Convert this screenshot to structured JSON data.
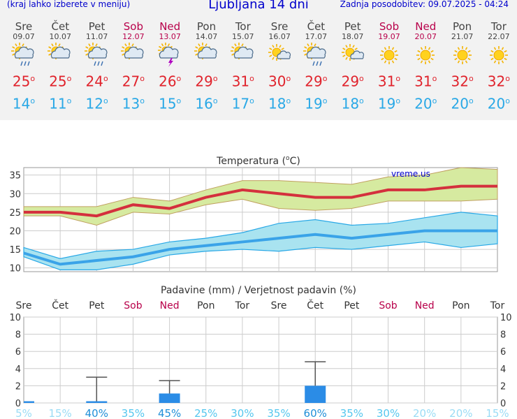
{
  "header": {
    "left_note": "(kraj lahko izberete v meniju)",
    "title": "Ljubljana 14 dni",
    "updated": "Zadnja posodobitev: 09.07.2025 - 04:24"
  },
  "days": [
    {
      "name": "Sre",
      "date": "09.07",
      "weekend": false,
      "icon": "sun-cloud-rain-icon",
      "tmax": "25",
      "tmin": "14"
    },
    {
      "name": "Čet",
      "date": "10.07",
      "weekend": false,
      "icon": "sun-cloud-icon",
      "tmax": "25",
      "tmin": "11"
    },
    {
      "name": "Pet",
      "date": "11.07",
      "weekend": false,
      "icon": "sun-cloud-rain-icon",
      "tmax": "24",
      "tmin": "12"
    },
    {
      "name": "Sob",
      "date": "12.07",
      "weekend": true,
      "icon": "sun-cloud-icon",
      "tmax": "27",
      "tmin": "13"
    },
    {
      "name": "Ned",
      "date": "13.07",
      "weekend": true,
      "icon": "cloud-thunder-icon",
      "tmax": "26",
      "tmin": "15"
    },
    {
      "name": "Pon",
      "date": "14.07",
      "weekend": false,
      "icon": "sun-cloud-icon",
      "tmax": "29",
      "tmin": "16"
    },
    {
      "name": "Tor",
      "date": "15.07",
      "weekend": false,
      "icon": "sun-cloud-icon",
      "tmax": "31",
      "tmin": "17"
    },
    {
      "name": "Sre",
      "date": "16.07",
      "weekend": false,
      "icon": "sun-small-cloud-icon",
      "tmax": "30",
      "tmin": "18"
    },
    {
      "name": "Čet",
      "date": "17.07",
      "weekend": false,
      "icon": "sun-cloud-rain-icon",
      "tmax": "29",
      "tmin": "19"
    },
    {
      "name": "Pet",
      "date": "18.07",
      "weekend": false,
      "icon": "sun-small-cloud-icon",
      "tmax": "29",
      "tmin": "18"
    },
    {
      "name": "Sob",
      "date": "19.07",
      "weekend": true,
      "icon": "sun-icon",
      "tmax": "31",
      "tmin": "19"
    },
    {
      "name": "Ned",
      "date": "20.07",
      "weekend": true,
      "icon": "sun-icon",
      "tmax": "31",
      "tmin": "20"
    },
    {
      "name": "Pon",
      "date": "21.07",
      "weekend": false,
      "icon": "sun-icon",
      "tmax": "32",
      "tmin": "20"
    },
    {
      "name": "Tor",
      "date": "22.07",
      "weekend": false,
      "icon": "sun-icon",
      "tmax": "32",
      "tmin": "20"
    }
  ],
  "colors": {
    "max": "#e0232c",
    "min": "#29a8e6",
    "weekend": "#b8004a",
    "header": "#0000cc",
    "max_band": "#d6eaa0",
    "min_band": "#a9e3f0",
    "bar": "#2b8ce6",
    "prob": "#55c7ee"
  },
  "chart_data": [
    {
      "type": "line",
      "title": "Temperatura (°C)",
      "title_main": "Temperatura (",
      "title_unit": "o",
      "title_end": "C)",
      "watermark": "vreme.us",
      "ylim": [
        9,
        37
      ],
      "yticks": [
        "10",
        "15",
        "20",
        "25",
        "30",
        "35"
      ],
      "x": [
        1,
        2,
        3,
        4,
        5,
        6,
        7,
        8,
        9,
        10,
        11,
        12,
        13,
        14
      ],
      "series": [
        {
          "name": "Tmax",
          "values": [
            25,
            25,
            24,
            27,
            26,
            29,
            31,
            30,
            29,
            29,
            31,
            31,
            32,
            32
          ],
          "upper": [
            26.5,
            26.5,
            26.5,
            29,
            28,
            31,
            33.5,
            33.5,
            33,
            32.5,
            34.5,
            35,
            37,
            36.5
          ],
          "lower": [
            24,
            24,
            21.5,
            25,
            24.5,
            27,
            28.5,
            26,
            25.5,
            26,
            28,
            28,
            28,
            28.5
          ]
        },
        {
          "name": "Tmin",
          "values": [
            14,
            11,
            12,
            13,
            15,
            16,
            17,
            18,
            19,
            18,
            19,
            20,
            20,
            20
          ],
          "upper": [
            15.5,
            12.5,
            14.5,
            15,
            17,
            18,
            19.5,
            22,
            23,
            21.5,
            22,
            23.5,
            25,
            24
          ],
          "lower": [
            13,
            9.5,
            9.5,
            11,
            13.5,
            14.5,
            15,
            14.5,
            15.5,
            15,
            16,
            17,
            15.5,
            16.5
          ]
        }
      ]
    },
    {
      "type": "bar",
      "title": "Padavine (mm) / Verjetnost padavin (%)",
      "categories": [
        "Sre",
        "Čet",
        "Pet",
        "Sob",
        "Ned",
        "Pon",
        "Tor",
        "Sre",
        "Čet",
        "Pet",
        "Sob",
        "Ned",
        "Pon",
        "Tor"
      ],
      "weekend": [
        false,
        false,
        false,
        true,
        true,
        false,
        false,
        false,
        false,
        false,
        true,
        true,
        false,
        false
      ],
      "ylim": [
        0,
        10
      ],
      "yticks": [
        "0",
        "2",
        "4",
        "6",
        "8",
        "10"
      ],
      "values": [
        0.2,
        0,
        0.2,
        0,
        1.1,
        0,
        0,
        0,
        2.0,
        0,
        0,
        0,
        0,
        0
      ],
      "error_high": [
        0.2,
        0,
        3.0,
        0,
        2.6,
        0,
        0,
        0,
        4.8,
        0,
        0,
        0,
        0,
        0
      ],
      "probability": [
        "5%",
        "15%",
        "40%",
        "35%",
        "45%",
        "25%",
        "30%",
        "35%",
        "60%",
        "35%",
        "30%",
        "20%",
        "20%",
        "15%"
      ],
      "probability_values": [
        5,
        15,
        40,
        35,
        45,
        25,
        30,
        35,
        60,
        35,
        30,
        20,
        20,
        15
      ]
    }
  ]
}
